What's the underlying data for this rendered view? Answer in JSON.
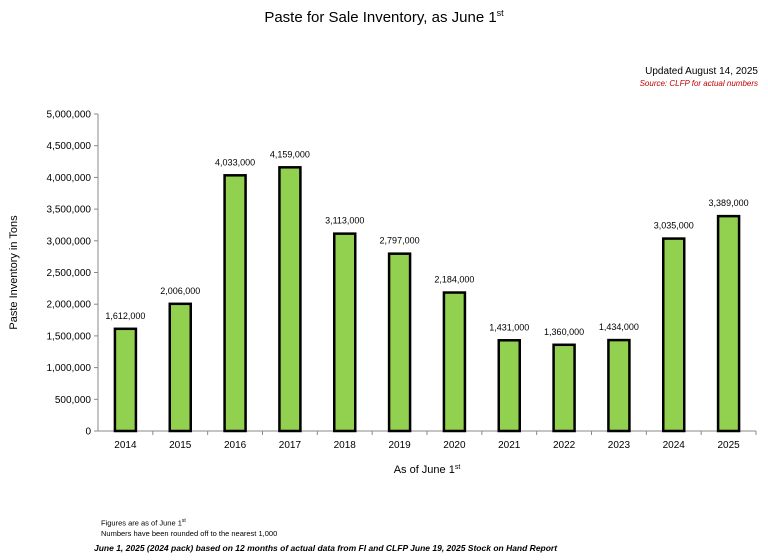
{
  "chart_data": {
    "type": "bar",
    "title": "Paste for Sale Inventory,  as June 1",
    "title_sup": "st",
    "xlabel": "As of June 1",
    "xlabel_sup": "st",
    "ylabel": "Paste Inventory in Tons",
    "ylim": [
      0,
      5000000
    ],
    "yticks": [
      0,
      500000,
      1000000,
      1500000,
      2000000,
      2500000,
      3000000,
      3500000,
      4000000,
      4500000,
      5000000
    ],
    "ytick_labels": [
      "0",
      "500,000",
      "1,000,000",
      "1,500,000",
      "2,000,000",
      "2,500,000",
      "3,000,000",
      "3,500,000",
      "4,000,000",
      "4,500,000",
      "5,000,000"
    ],
    "categories": [
      "2014",
      "2015",
      "2016",
      "2017",
      "2018",
      "2019",
      "2020",
      "2021",
      "2022",
      "2023",
      "2024",
      "2025"
    ],
    "values": [
      1612000,
      2006000,
      4033000,
      4159000,
      3113000,
      2797000,
      2184000,
      1431000,
      1360000,
      1434000,
      3035000,
      3389000
    ],
    "data_labels": [
      "1,612,000",
      "2,006,000",
      "4,033,000",
      "4,159,000",
      "3,113,000",
      "2,797,000",
      "2,184,000",
      "1,431,000",
      "1,360,000",
      "1,434,000",
      "3,035,000",
      "3,389,000"
    ],
    "bar_color": "#92d050",
    "grid": false,
    "legend": "none"
  },
  "annotations": {
    "updated": "Updated August 14, 2025",
    "source": "Source:  CLFP for actual numbers",
    "source_color": "#c00000",
    "note1": "Figures are as of June 1",
    "note1_sup": "st",
    "note2": "Numbers have been rounded off to the nearest 1,000",
    "footer": "June 1, 2025 (2024 pack) based on 12 months of actual data from FI  and CLFP June 19, 2025 Stock on Hand Report"
  }
}
